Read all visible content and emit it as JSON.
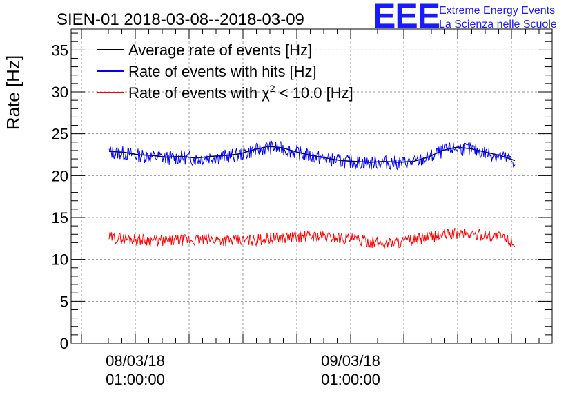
{
  "chart_data": {
    "type": "line",
    "title": "SIEN-01 2018-03-08--2018-03-09",
    "ylabel": "Rate [Hz]",
    "xlabel": "",
    "ylim": [
      0,
      37.5
    ],
    "yticks": [
      "0",
      "5",
      "10",
      "15",
      "20",
      "25",
      "30",
      "35"
    ],
    "xticks": [
      {
        "date": "08/03/18",
        "time": "01:00:00"
      },
      {
        "date": "09/03/18",
        "time": "01:00:00"
      }
    ],
    "grid": true,
    "legend_position": "top-left",
    "series": [
      {
        "name": "Average rate of events [Hz]",
        "color": "#000000",
        "values": [
          22.9,
          22.8,
          22.5,
          22.4,
          22.2,
          22.3,
          22.1,
          22.3,
          22.4,
          22.6,
          23.1,
          23.5,
          23.3,
          22.8,
          22.4,
          22.1,
          21.8,
          21.7,
          21.6,
          21.7,
          21.6,
          21.7,
          22.2,
          23.0,
          23.4,
          23.2,
          22.8,
          22.4,
          21.8
        ]
      },
      {
        "name": "Rate of events with hits [Hz]",
        "color": "#0000ff",
        "values": [
          22.8,
          22.7,
          22.4,
          22.3,
          22.1,
          22.2,
          22.0,
          22.2,
          22.3,
          22.5,
          23.0,
          23.4,
          23.2,
          22.7,
          22.3,
          22.0,
          21.7,
          21.6,
          21.5,
          21.6,
          21.5,
          21.6,
          22.1,
          22.9,
          23.3,
          23.1,
          22.7,
          22.3,
          21.6
        ]
      },
      {
        "name": "Rate of events with χ² < 10.0 [Hz]",
        "color": "#ff0000",
        "values": [
          12.6,
          12.5,
          12.4,
          12.3,
          12.2,
          12.3,
          12.3,
          12.4,
          12.3,
          12.2,
          12.3,
          12.5,
          12.6,
          12.7,
          12.8,
          12.7,
          12.6,
          12.4,
          12.1,
          11.9,
          12.1,
          12.3,
          12.6,
          12.9,
          13.1,
          13.0,
          12.9,
          12.7,
          11.9
        ]
      }
    ],
    "legend": {
      "avg": "Average rate of events [Hz]",
      "hits": "Rate of events with hits [Hz]",
      "chi_pre": "Rate of events with ",
      "chi_sym": "χ",
      "chi_sup": "2",
      "chi_post": " < 10.0 [Hz]"
    }
  },
  "logo": {
    "text": "EEE",
    "line1": "Extreme Energy Events",
    "line2": "La Scienza nelle Scuole",
    "color": "#1a1aff"
  }
}
